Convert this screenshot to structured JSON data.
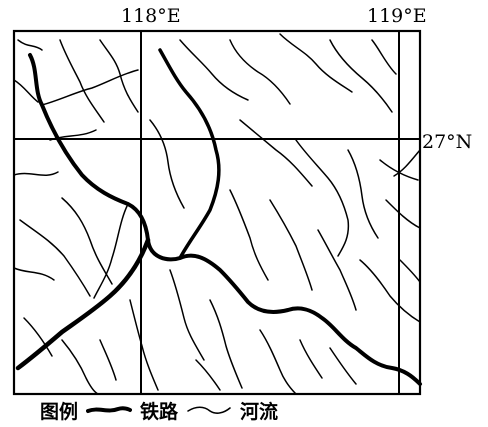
{
  "map": {
    "labels": {
      "lon_118": "118°E",
      "lon_119": "119°E",
      "lat_27": "27°N"
    },
    "legend": {
      "title": "图例",
      "railway": "铁路",
      "river": "河流"
    },
    "colors": {
      "ink": "#000000",
      "background": "#ffffff"
    }
  }
}
